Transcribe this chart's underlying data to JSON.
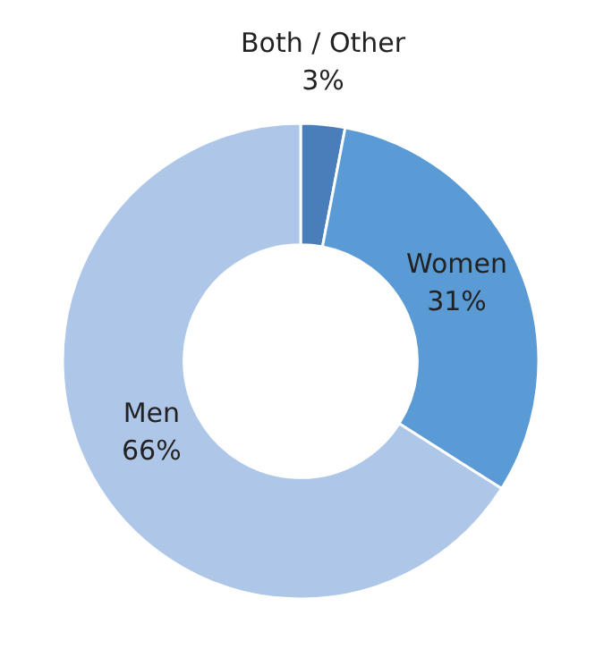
{
  "chart_data": {
    "type": "donut",
    "categories": [
      "Both / Other",
      "Women",
      "Men"
    ],
    "values": [
      3,
      31,
      66
    ],
    "colors": [
      "#4a7ebb",
      "#5b9bd5",
      "#aec6e8"
    ],
    "value_labels": [
      "3%",
      "31%",
      "66%"
    ]
  }
}
